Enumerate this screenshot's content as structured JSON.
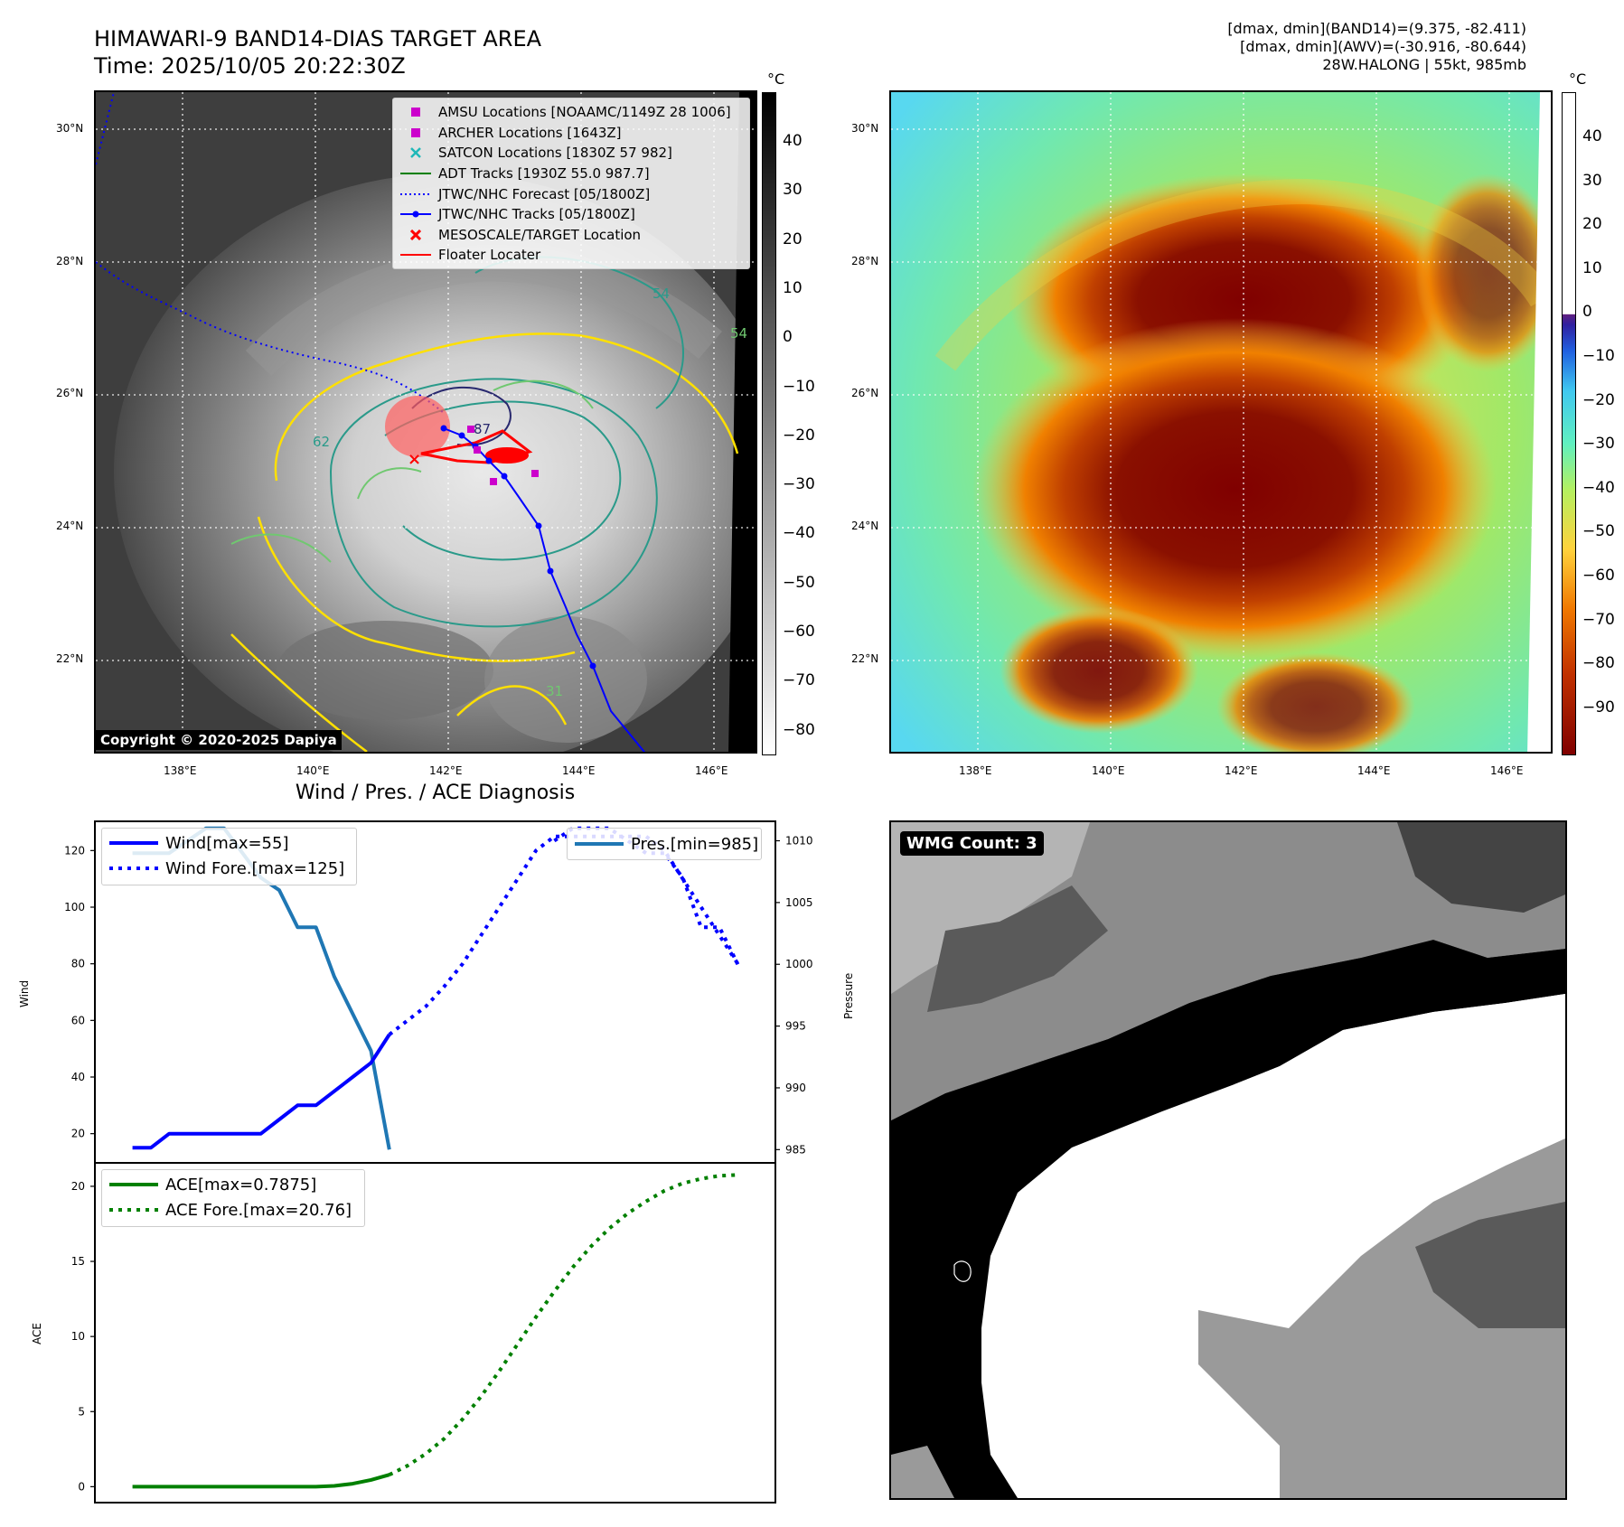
{
  "header": {
    "title_line1": "HIMAWARI-9 BAND14-DIAS TARGET AREA",
    "title_line2": "Time: 2025/10/05 20:22:30Z",
    "info_line1": "[dmax, dmin](BAND14)=(9.375, -82.411)",
    "info_line2": "[dmax, dmin](AWV)=(-30.916, -80.644)",
    "info_line3": "28W.HALONG | 55kt, 985mb"
  },
  "map_axes": {
    "lat_labels": [
      "30°N",
      "28°N",
      "26°N",
      "24°N",
      "22°N"
    ],
    "lon_labels": [
      "138°E",
      "140°E",
      "142°E",
      "144°E",
      "146°E"
    ]
  },
  "ir_colorbar": {
    "unit": "°C",
    "ticks": [
      "40",
      "30",
      "20",
      "10",
      "0",
      "−10",
      "−20",
      "−30",
      "−40",
      "−50",
      "−60",
      "−70",
      "−80"
    ],
    "colors": [
      "#000000",
      "#ffffff"
    ]
  },
  "awv_colorbar": {
    "unit": "°C",
    "ticks": [
      "40",
      "30",
      "20",
      "10",
      "0",
      "−10",
      "−20",
      "−30",
      "−40",
      "−50",
      "−60",
      "−70",
      "−80",
      "−90"
    ],
    "colors": [
      "#800000",
      "#c03000",
      "#f07800",
      "#ffd23c",
      "#b4f060",
      "#60f0c0",
      "#40c8f0",
      "#2060e0",
      "#3020a0",
      "#602080",
      "#ffffff"
    ]
  },
  "map_legend": {
    "items": [
      {
        "label": "AMSU Locations [NOAAMC/1149Z 28 1006]",
        "icon": "magenta-square",
        "color": "#cc00cc"
      },
      {
        "label": "ARCHER Locations [1643Z]",
        "icon": "magenta-square",
        "color": "#cc00cc"
      },
      {
        "label": "SATCON Locations [1830Z 57 982]",
        "icon": "cyan-x",
        "color": "#20b8b8"
      },
      {
        "label": "ADT Tracks [1930Z 55.0 987.7]",
        "icon": "green-line",
        "color": "#008000"
      },
      {
        "label": "JTWC/NHC Forecast [05/1800Z]",
        "icon": "blue-dotted-line",
        "color": "#0000ff"
      },
      {
        "label": "JTWC/NHC Tracks [05/1800Z]",
        "icon": "blue-line-dot",
        "color": "#0000ff"
      },
      {
        "label": "MESOSCALE/TARGET Location",
        "icon": "red-x",
        "color": "#ff0000"
      },
      {
        "label": "Floater Locater",
        "icon": "red-line",
        "color": "#ff0000"
      }
    ]
  },
  "map_contour_labels": [
    "54",
    "54",
    "62",
    "31",
    "87"
  ],
  "copyright": "Copyright © 2020-2025 Dapiya",
  "diagnosis": {
    "title": "Wind / Pres. / ACE Diagnosis",
    "wind_ylabel": "Wind",
    "pres_ylabel": "Pressure",
    "ace_ylabel": "ACE",
    "wind_ticks": [
      "120",
      "100",
      "80",
      "60",
      "40",
      "20"
    ],
    "pres_ticks": [
      "1010",
      "1005",
      "1000",
      "995",
      "990",
      "985"
    ],
    "ace_ticks": [
      "20",
      "15",
      "10",
      "5",
      "0"
    ],
    "legend_wind": "Wind[max=55]",
    "legend_wind_fore": "Wind Fore.[max=125]",
    "legend_pres": "Pres.[min=985]",
    "legend_ace": "ACE[max=0.7875]",
    "legend_ace_fore": "ACE Fore.[max=20.76]"
  },
  "chart_data": [
    {
      "type": "line",
      "title": "Wind / Pres. / ACE Diagnosis",
      "ylabel": "Wind",
      "ylim": [
        10,
        130
      ],
      "series": [
        {
          "name": "Wind[max=55]",
          "style": "solid",
          "color": "#0000ff",
          "x": [
            0,
            1,
            2,
            3,
            4,
            5,
            6,
            7,
            8,
            9,
            10,
            11,
            12,
            13,
            14
          ],
          "values": [
            15,
            15,
            20,
            20,
            20,
            20,
            20,
            20,
            25,
            30,
            30,
            35,
            40,
            45,
            55
          ]
        },
        {
          "name": "Wind Fore.[max=125]",
          "style": "dotted",
          "color": "#0000ff",
          "x": [
            14,
            15,
            16,
            17,
            18,
            19,
            20,
            21,
            22,
            23,
            24,
            25,
            26,
            27,
            28,
            29,
            30,
            31,
            32,
            33
          ],
          "values": [
            55,
            60,
            65,
            72,
            80,
            90,
            100,
            110,
            120,
            125,
            125,
            125,
            125,
            125,
            125,
            120,
            110,
            100,
            90,
            80
          ]
        }
      ]
    },
    {
      "type": "line",
      "ylabel": "Pressure",
      "ylim": [
        984,
        1011.5
      ],
      "series": [
        {
          "name": "Pres.[min=985]",
          "style": "solid",
          "color": "#1f77b4",
          "x": [
            0,
            1,
            2,
            3,
            4,
            5,
            6,
            7,
            8,
            9,
            10,
            11,
            12,
            13,
            14
          ],
          "values": [
            1009,
            1009,
            1009,
            1010,
            1011,
            1011,
            1009,
            1007,
            1006,
            1003,
            1003,
            999,
            996,
            993,
            985
          ]
        },
        {
          "name": "",
          "style": "dotted",
          "color": "#0000ff",
          "x": [
            23,
            24,
            25,
            26,
            27,
            28,
            29,
            30,
            31,
            32,
            33
          ],
          "values": [
            1010,
            1011,
            1011,
            1011,
            1010,
            1009,
            1009,
            1007,
            1003,
            1003,
            1000
          ]
        }
      ]
    },
    {
      "type": "line",
      "ylabel": "ACE",
      "ylim": [
        -1,
        21.5
      ],
      "series": [
        {
          "name": "ACE[max=0.7875]",
          "style": "solid",
          "color": "#008000",
          "x": [
            0,
            2,
            4,
            6,
            8,
            10,
            11,
            12,
            13,
            14
          ],
          "values": [
            0,
            0,
            0,
            0,
            0,
            0,
            0.05,
            0.2,
            0.45,
            0.79
          ]
        },
        {
          "name": "ACE Fore.[max=20.76]",
          "style": "dotted",
          "color": "#008000",
          "x": [
            14,
            15,
            16,
            17,
            18,
            19,
            20,
            21,
            22,
            23,
            24,
            25,
            26,
            27,
            28,
            29,
            30,
            31,
            32,
            33
          ],
          "values": [
            0.79,
            1.4,
            2.2,
            3.2,
            4.5,
            6.0,
            7.7,
            9.5,
            11.3,
            13.0,
            14.6,
            16.0,
            17.2,
            18.2,
            19.0,
            19.7,
            20.2,
            20.5,
            20.7,
            20.76
          ]
        }
      ]
    }
  ],
  "wmg": {
    "label": "WMG Count: 3"
  }
}
